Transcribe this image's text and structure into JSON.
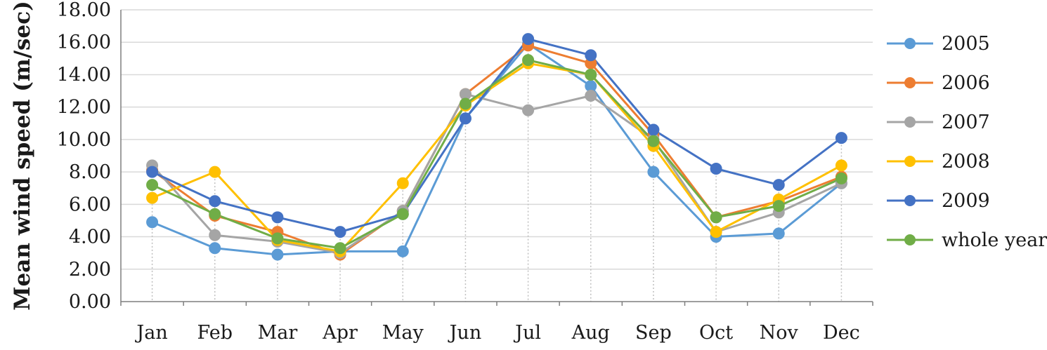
{
  "chart_data": {
    "type": "line",
    "title": "",
    "xlabel": "",
    "ylabel": "Mean wind speed (m/sec)",
    "ylim": [
      0,
      18
    ],
    "y_tick_values": [
      0,
      2,
      4,
      6,
      8,
      10,
      12,
      14,
      16,
      18
    ],
    "y_tick_labels": [
      "0.00",
      "2.00",
      "4.00",
      "6.00",
      "8.00",
      "10.00",
      "12.00",
      "14.00",
      "16.00",
      "18.00"
    ],
    "categories": [
      "Jan",
      "Feb",
      "Mar",
      "Apr",
      "May",
      "Jun",
      "Jul",
      "Aug",
      "Sep",
      "Oct",
      "Nov",
      "Dec"
    ],
    "grid": "horizontal",
    "drop_lines": true,
    "legend_position": "right",
    "series": [
      {
        "name": "2005",
        "color": "#5b9bd5",
        "values": [
          4.9,
          3.3,
          2.9,
          3.1,
          3.1,
          11.3,
          15.9,
          13.3,
          8.0,
          4.0,
          4.2,
          7.3
        ]
      },
      {
        "name": "2006",
        "color": "#ed7d31",
        "values": [
          8.1,
          5.3,
          4.3,
          2.9,
          5.6,
          12.8,
          15.8,
          14.7,
          10.3,
          5.2,
          6.2,
          7.7
        ]
      },
      {
        "name": "2007",
        "color": "#a5a5a5",
        "values": [
          8.4,
          4.1,
          3.7,
          3.0,
          5.6,
          12.8,
          11.8,
          12.7,
          10.0,
          4.3,
          5.5,
          7.3
        ]
      },
      {
        "name": "2008",
        "color": "#ffc000",
        "values": [
          6.4,
          8.0,
          3.8,
          3.1,
          7.3,
          12.1,
          14.7,
          14.0,
          9.6,
          4.3,
          6.3,
          8.4
        ]
      },
      {
        "name": "2009",
        "color": "#4472c4",
        "values": [
          8.0,
          6.2,
          5.2,
          4.3,
          5.4,
          11.3,
          16.2,
          15.2,
          10.6,
          8.2,
          7.2,
          10.1
        ]
      },
      {
        "name": "whole year",
        "color": "#70ad47",
        "values": [
          7.2,
          5.4,
          3.9,
          3.3,
          5.4,
          12.2,
          14.9,
          14.0,
          9.9,
          5.2,
          5.9,
          7.6
        ]
      }
    ]
  }
}
